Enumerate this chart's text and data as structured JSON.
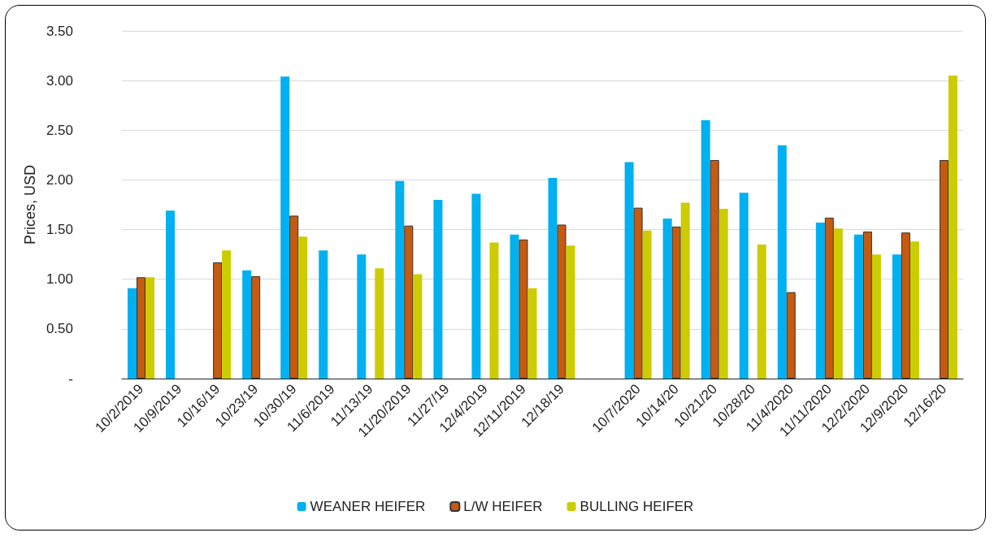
{
  "chart_data": {
    "type": "bar",
    "ylabel": "Prices, USD",
    "categories": [
      "10/2/2019",
      "10/9/2019",
      "10/16/19",
      "10/23/19",
      "10/30/19",
      "11/6/2019",
      "11/13/19",
      "11/20/2019",
      "11/27/19",
      "12/4/2019",
      "12/11/2019",
      "12/18/19",
      null,
      "10/7/2020",
      "10/14/20",
      "10/21/20",
      "10/28/20",
      "11/4/2020",
      "11/11/2020",
      "12/2/2020",
      "12/9/2020",
      "12/16/20"
    ],
    "series": [
      {
        "name": "WEANER HEIFER",
        "color": "#00b0f0",
        "values": [
          0.91,
          1.69,
          null,
          1.09,
          3.04,
          1.29,
          1.25,
          1.99,
          1.8,
          1.86,
          1.45,
          2.02,
          null,
          2.18,
          1.61,
          2.6,
          1.87,
          2.35,
          1.57,
          1.45,
          1.25,
          null
        ]
      },
      {
        "name": "L/W HEIFER",
        "color": "#c55a11",
        "values": [
          1.02,
          null,
          1.17,
          1.03,
          1.64,
          null,
          null,
          1.54,
          null,
          null,
          1.4,
          1.55,
          null,
          1.72,
          1.53,
          2.2,
          null,
          0.87,
          1.62,
          1.48,
          1.47,
          2.2
        ]
      },
      {
        "name": "BULLING HEIFER",
        "color": "#cccc00",
        "values": [
          1.02,
          null,
          1.29,
          null,
          1.43,
          null,
          1.11,
          1.05,
          null,
          1.37,
          0.91,
          1.34,
          null,
          1.49,
          1.77,
          1.71,
          1.35,
          null,
          1.51,
          1.25,
          1.38,
          3.05
        ]
      }
    ],
    "ylim": [
      0,
      3.5
    ],
    "yticks": [
      {
        "value": 0,
        "label": "-"
      },
      {
        "value": 0.5,
        "label": "0.50"
      },
      {
        "value": 1,
        "label": "1.00"
      },
      {
        "value": 1.5,
        "label": "1.50"
      },
      {
        "value": 2,
        "label": "2.00"
      },
      {
        "value": 2.5,
        "label": "2.50"
      },
      {
        "value": 3,
        "label": "3.00"
      },
      {
        "value": 3.5,
        "label": "3.50"
      }
    ],
    "grid": "y",
    "legend": "bottom"
  }
}
